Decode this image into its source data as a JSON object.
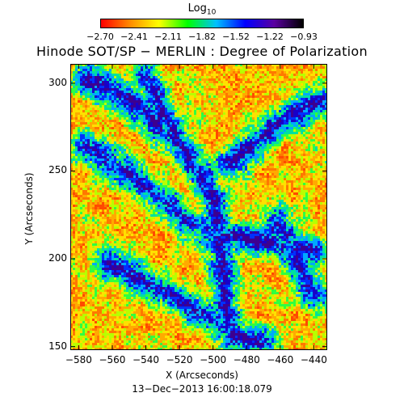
{
  "colorbar": {
    "label_main": "Log",
    "label_sub": "10",
    "ticks": [
      "−2.70",
      "−2.41",
      "−2.11",
      "−1.82",
      "−1.52",
      "−1.22",
      "−0.93"
    ],
    "colors": [
      "#ff0000",
      "#ff8a00",
      "#ffff00",
      "#00ff00",
      "#00c0ff",
      "#0000ff",
      "#5a00a0",
      "#000000"
    ]
  },
  "title": "Hinode SOT/SP − MERLIN : Degree of Polarization",
  "image": {
    "description_icon": "solar-polarization-map",
    "x_ticks": [
      "−580",
      "−560",
      "−540",
      "−520",
      "−500",
      "−480",
      "−460",
      "−440"
    ],
    "y_ticks": [
      "300",
      "250",
      "200",
      "150"
    ],
    "xlabel": "X (Arcseconds)",
    "ylabel": "Y (Arcseconds)",
    "x_range": [
      -585,
      -432
    ],
    "y_range": [
      148,
      311
    ]
  },
  "timestamp": "13−Dec−2013 16:00:18.079"
}
